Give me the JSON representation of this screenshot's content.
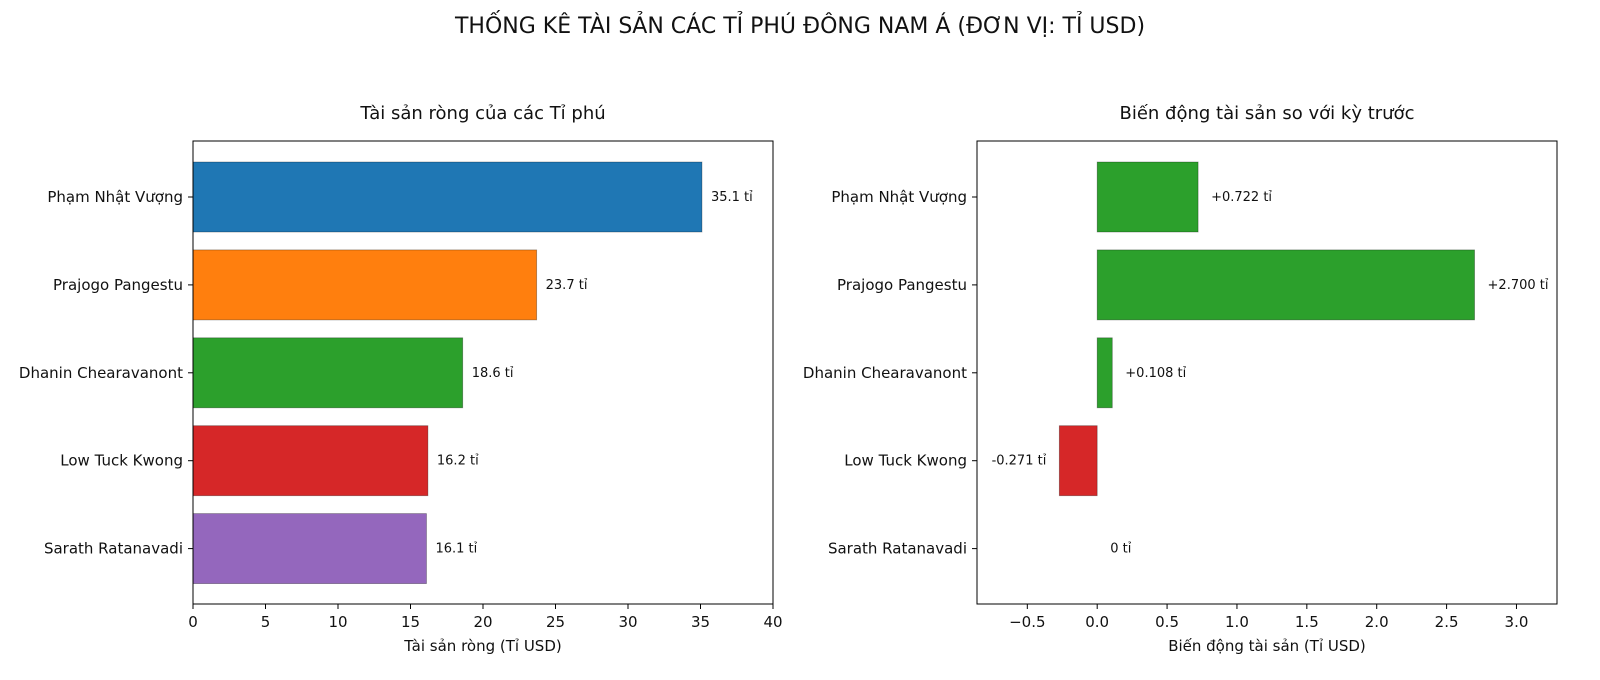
{
  "suptitle": "THỐNG KÊ TÀI SẢN CÁC TỈ PHÚ ĐÔNG NAM Á (ĐƠN VỊ: TỈ USD)",
  "chart_data": [
    {
      "type": "bar",
      "orientation": "horizontal",
      "title": "Tài sản ròng của các Tỉ phú",
      "xlabel": "Tài sản ròng (Tỉ USD)",
      "categories": [
        "Phạm Nhật Vượng",
        "Prajogo Pangestu",
        "Dhanin Chearavanont",
        "Low Tuck Kwong",
        "Sarath Ratanavadi"
      ],
      "values": [
        35.1,
        23.7,
        18.6,
        16.2,
        16.1
      ],
      "data_labels": [
        "35.1 tỉ",
        "23.7 tỉ",
        "18.6 tỉ",
        "16.2 tỉ",
        "16.1 tỉ"
      ],
      "colors": [
        "#1f77b4",
        "#ff7f0e",
        "#2ca02c",
        "#d62728",
        "#9467bd"
      ],
      "xlim": [
        0,
        40
      ],
      "xticks": [
        0,
        5,
        10,
        15,
        20,
        25,
        30,
        35,
        40
      ],
      "xtick_labels": [
        "0",
        "5",
        "10",
        "15",
        "20",
        "25",
        "30",
        "35",
        "40"
      ],
      "grid": false
    },
    {
      "type": "bar",
      "orientation": "horizontal",
      "title": "Biến động tài sản so với kỳ trước",
      "xlabel": "Biến động tài sản (Tỉ USD)",
      "categories": [
        "Phạm Nhật Vượng",
        "Prajogo Pangestu",
        "Dhanin Chearavanont",
        "Low Tuck Kwong",
        "Sarath Ratanavadi"
      ],
      "values": [
        0.722,
        2.7,
        0.108,
        -0.271,
        0
      ],
      "data_labels": [
        "+0.722 tỉ",
        "+2.700 tỉ",
        "+0.108 tỉ",
        "-0.271 tỉ",
        "0 tỉ"
      ],
      "colors": [
        "#2ca02c",
        "#2ca02c",
        "#2ca02c",
        "#d62728",
        "#2ca02c"
      ],
      "xlim": [
        -0.86,
        3.29
      ],
      "xticks": [
        -0.5,
        0,
        0.5,
        1,
        1.5,
        2,
        2.5,
        3
      ],
      "xtick_labels": [
        "−0.5",
        "0.0",
        "0.5",
        "1.0",
        "1.5",
        "2.0",
        "2.5",
        "3.0"
      ],
      "grid": false
    }
  ]
}
